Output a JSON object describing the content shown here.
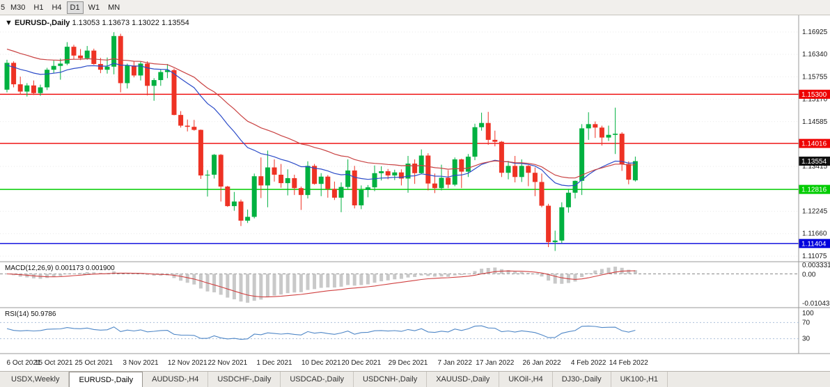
{
  "toolbar": {
    "periods": [
      {
        "label": "5",
        "active": false,
        "partial": true
      },
      {
        "label": "M30",
        "active": false,
        "partial": false
      },
      {
        "label": "H1",
        "active": false,
        "partial": false
      },
      {
        "label": "H4",
        "active": false,
        "partial": false
      },
      {
        "label": "D1",
        "active": true,
        "partial": false
      },
      {
        "label": "W1",
        "active": false,
        "partial": false
      },
      {
        "label": "MN",
        "active": false,
        "partial": false
      }
    ]
  },
  "chart_header": {
    "arrow": "▼",
    "symbol": "EURUSD-,Daily",
    "open": "1.13053",
    "high": "1.13673",
    "low": "1.13022",
    "close": "1.13554"
  },
  "chart_data": {
    "type": "candlestick",
    "title": "EURUSD-,Daily",
    "colors": {
      "up": "#00b140",
      "down": "#ee3224",
      "background": "#ffffff"
    },
    "y_ticks": [
      "1.16925",
      "1.16340",
      "1.15755",
      "1.15170",
      "1.14585",
      "1.13415",
      "1.12245",
      "1.11660",
      "1.11075"
    ],
    "x_ticks": [
      {
        "label": "6 Oct 2021",
        "bar": 0
      },
      {
        "label": "15 Oct 2021",
        "bar": 7
      },
      {
        "label": "25 Oct 2021",
        "bar": 13
      },
      {
        "label": "3 Nov 2021",
        "bar": 20
      },
      {
        "label": "12 Nov 2021",
        "bar": 27
      },
      {
        "label": "22 Nov 2021",
        "bar": 33
      },
      {
        "label": "1 Dec 2021",
        "bar": 40
      },
      {
        "label": "10 Dec 2021",
        "bar": 47
      },
      {
        "label": "20 Dec 2021",
        "bar": 53
      },
      {
        "label": "29 Dec 2021",
        "bar": 60
      },
      {
        "label": "7 Jan 2022",
        "bar": 67
      },
      {
        "label": "17 Jan 2022",
        "bar": 73
      },
      {
        "label": "26 Jan 2022",
        "bar": 80
      },
      {
        "label": "4 Feb 2022",
        "bar": 87
      },
      {
        "label": "14 Feb 2022",
        "bar": 93
      }
    ],
    "levels": [
      {
        "price": 1.153,
        "label": "1.15300",
        "color": "#ee0000"
      },
      {
        "price": 1.14016,
        "label": "1.14016",
        "color": "#ee0000"
      },
      {
        "price": 1.12816,
        "label": "1.12816",
        "color": "#00cc00"
      },
      {
        "price": 1.11404,
        "label": "1.11404",
        "color": "#0000dd"
      }
    ],
    "current_price": {
      "value": 1.13554,
      "label": "1.13554",
      "badge_color": "#101010"
    },
    "moving_averages": [
      {
        "name": "ma-fast-blue",
        "period": 20,
        "seed": 1.1605,
        "color": "#2b4bc8"
      },
      {
        "name": "ma-slow-red",
        "period": 34,
        "seed": 1.165,
        "color": "#c94242"
      }
    ],
    "ohlc": [
      [
        1.1542,
        1.162,
        1.1535,
        1.1612
      ],
      [
        1.1612,
        1.1616,
        1.1548,
        1.1556
      ],
      [
        1.1556,
        1.1576,
        1.1529,
        1.1537
      ],
      [
        1.1537,
        1.1559,
        1.1524,
        1.1553
      ],
      [
        1.1553,
        1.1566,
        1.1528,
        1.1533
      ],
      [
        1.1533,
        1.1555,
        1.1526,
        1.1548
      ],
      [
        1.1548,
        1.1599,
        1.1541,
        1.1594
      ],
      [
        1.1594,
        1.1618,
        1.1585,
        1.1604
      ],
      [
        1.1604,
        1.1623,
        1.1568,
        1.161
      ],
      [
        1.161,
        1.1666,
        1.1606,
        1.1654
      ],
      [
        1.1654,
        1.1659,
        1.1621,
        1.1631
      ],
      [
        1.1631,
        1.1648,
        1.1619,
        1.1624
      ],
      [
        1.1624,
        1.1656,
        1.162,
        1.1644
      ],
      [
        1.1644,
        1.1649,
        1.1607,
        1.1609
      ],
      [
        1.1609,
        1.1625,
        1.1585,
        1.1594
      ],
      [
        1.1594,
        1.1626,
        1.1584,
        1.1602
      ],
      [
        1.1602,
        1.1692,
        1.1582,
        1.1682
      ],
      [
        1.1682,
        1.1688,
        1.1535,
        1.1559
      ],
      [
        1.1559,
        1.161,
        1.1545,
        1.1605
      ],
      [
        1.1605,
        1.1616,
        1.1574,
        1.1579
      ],
      [
        1.1579,
        1.1616,
        1.1566,
        1.161
      ],
      [
        1.161,
        1.1616,
        1.1527,
        1.1552
      ],
      [
        1.1552,
        1.1572,
        1.1513,
        1.1567
      ],
      [
        1.1567,
        1.1594,
        1.1552,
        1.1588
      ],
      [
        1.1588,
        1.1609,
        1.1572,
        1.1593
      ],
      [
        1.1593,
        1.1597,
        1.1475,
        1.1476
      ],
      [
        1.1476,
        1.1486,
        1.1443,
        1.1448
      ],
      [
        1.1448,
        1.1464,
        1.1433,
        1.1445
      ],
      [
        1.1445,
        1.1463,
        1.1435,
        1.1437
      ],
      [
        1.1437,
        1.1438,
        1.1309,
        1.1318
      ],
      [
        1.1318,
        1.1332,
        1.1263,
        1.132
      ],
      [
        1.132,
        1.1374,
        1.131,
        1.1372
      ],
      [
        1.1372,
        1.1374,
        1.125,
        1.1289
      ],
      [
        1.1289,
        1.1291,
        1.1236,
        1.1238
      ],
      [
        1.1238,
        1.1275,
        1.1226,
        1.125
      ],
      [
        1.125,
        1.1255,
        1.1186,
        1.12
      ],
      [
        1.12,
        1.1229,
        1.1194,
        1.121
      ],
      [
        1.121,
        1.1323,
        1.1206,
        1.1316
      ],
      [
        1.1316,
        1.1365,
        1.1259,
        1.1292
      ],
      [
        1.1292,
        1.1383,
        1.1235,
        1.1339
      ],
      [
        1.1339,
        1.136,
        1.1302,
        1.132
      ],
      [
        1.132,
        1.1348,
        1.1286,
        1.1298
      ],
      [
        1.1298,
        1.1334,
        1.1266,
        1.1311
      ],
      [
        1.1311,
        1.132,
        1.1267,
        1.1285
      ],
      [
        1.1285,
        1.1289,
        1.1228,
        1.1267
      ],
      [
        1.1267,
        1.1355,
        1.1258,
        1.1343
      ],
      [
        1.1343,
        1.1348,
        1.1294,
        1.1296
      ],
      [
        1.1296,
        1.1324,
        1.1264,
        1.1315
      ],
      [
        1.1315,
        1.1319,
        1.126,
        1.1283
      ],
      [
        1.1283,
        1.1302,
        1.1254,
        1.126
      ],
      [
        1.126,
        1.13,
        1.1222,
        1.1288
      ],
      [
        1.1288,
        1.136,
        1.1283,
        1.1331
      ],
      [
        1.1331,
        1.1343,
        1.1232,
        1.124
      ],
      [
        1.124,
        1.1292,
        1.123,
        1.128
      ],
      [
        1.128,
        1.1293,
        1.1261,
        1.1287
      ],
      [
        1.1287,
        1.1344,
        1.1277,
        1.1324
      ],
      [
        1.1324,
        1.1342,
        1.1305,
        1.1329
      ],
      [
        1.1329,
        1.1335,
        1.1308,
        1.1318
      ],
      [
        1.1318,
        1.1333,
        1.1306,
        1.1326
      ],
      [
        1.1326,
        1.1334,
        1.1292,
        1.131
      ],
      [
        1.131,
        1.1369,
        1.1273,
        1.1349
      ],
      [
        1.1349,
        1.136,
        1.1296,
        1.1324
      ],
      [
        1.1324,
        1.1386,
        1.1322,
        1.137
      ],
      [
        1.137,
        1.1376,
        1.1279,
        1.1297
      ],
      [
        1.1297,
        1.1323,
        1.1272,
        1.1285
      ],
      [
        1.1285,
        1.1346,
        1.1279,
        1.1312
      ],
      [
        1.1312,
        1.1332,
        1.1285,
        1.1294
      ],
      [
        1.1294,
        1.1365,
        1.129,
        1.136
      ],
      [
        1.136,
        1.1362,
        1.1285,
        1.1328
      ],
      [
        1.1328,
        1.1374,
        1.1314,
        1.1367
      ],
      [
        1.1367,
        1.1453,
        1.1358,
        1.1444
      ],
      [
        1.1444,
        1.1482,
        1.1435,
        1.1455
      ],
      [
        1.1455,
        1.1484,
        1.1398,
        1.1411
      ],
      [
        1.1411,
        1.1435,
        1.1394,
        1.1406
      ],
      [
        1.1406,
        1.1408,
        1.1314,
        1.1325
      ],
      [
        1.1325,
        1.1356,
        1.1308,
        1.1343
      ],
      [
        1.1343,
        1.1369,
        1.13,
        1.1314
      ],
      [
        1.1314,
        1.136,
        1.1301,
        1.1343
      ],
      [
        1.1343,
        1.1345,
        1.129,
        1.1325
      ],
      [
        1.1325,
        1.1339,
        1.1264,
        1.1301
      ],
      [
        1.1301,
        1.1323,
        1.1235,
        1.1239
      ],
      [
        1.1239,
        1.1244,
        1.1131,
        1.1144
      ],
      [
        1.1144,
        1.1174,
        1.1121,
        1.1148
      ],
      [
        1.1148,
        1.1248,
        1.1141,
        1.1235
      ],
      [
        1.1235,
        1.1283,
        1.1221,
        1.1273
      ],
      [
        1.1273,
        1.1305,
        1.1258,
        1.1304
      ],
      [
        1.1304,
        1.1452,
        1.1267,
        1.1441
      ],
      [
        1.1441,
        1.1483,
        1.1411,
        1.1452
      ],
      [
        1.1452,
        1.1459,
        1.1416,
        1.1443
      ],
      [
        1.1443,
        1.1448,
        1.1396,
        1.1417
      ],
      [
        1.1417,
        1.1448,
        1.1408,
        1.1424
      ],
      [
        1.1424,
        1.1495,
        1.1374,
        1.1427
      ],
      [
        1.1427,
        1.1431,
        1.133,
        1.1348
      ],
      [
        1.1348,
        1.1355,
        1.1295,
        1.1307
      ],
      [
        1.13053,
        1.13673,
        1.13022,
        1.13554
      ]
    ],
    "indicators": {
      "macd": {
        "label": "MACD(12,26,9)",
        "value_main": "0.001173",
        "value_signal": "0.001900",
        "fast": 12,
        "slow": 26,
        "signal": 9,
        "axis_max_label": "0.003331",
        "axis_zero_label": "0.00",
        "axis_min_label": "-0.010435",
        "histogram_color": "#c9c9c9",
        "signal_color": "#d04040"
      },
      "rsi": {
        "label": "RSI(14)",
        "value": "50.9786",
        "period": 14,
        "levels": [
          70,
          30
        ],
        "axis_labels": [
          "100",
          "70",
          "30"
        ],
        "line_color": "#4f87c7",
        "level_color": "#a9bfd9"
      }
    }
  },
  "bottom_tabs": {
    "active_index": 1,
    "tabs": [
      "USDX,Weekly",
      "EURUSD-,Daily",
      "AUDUSD-,H4",
      "USDCHF-,Daily",
      "USDCAD-,Daily",
      "USDCNH-,Daily",
      "XAUUSD-,Daily",
      "UKOil-,H4",
      "DJ30-,Daily",
      "UK100-,H1"
    ]
  }
}
